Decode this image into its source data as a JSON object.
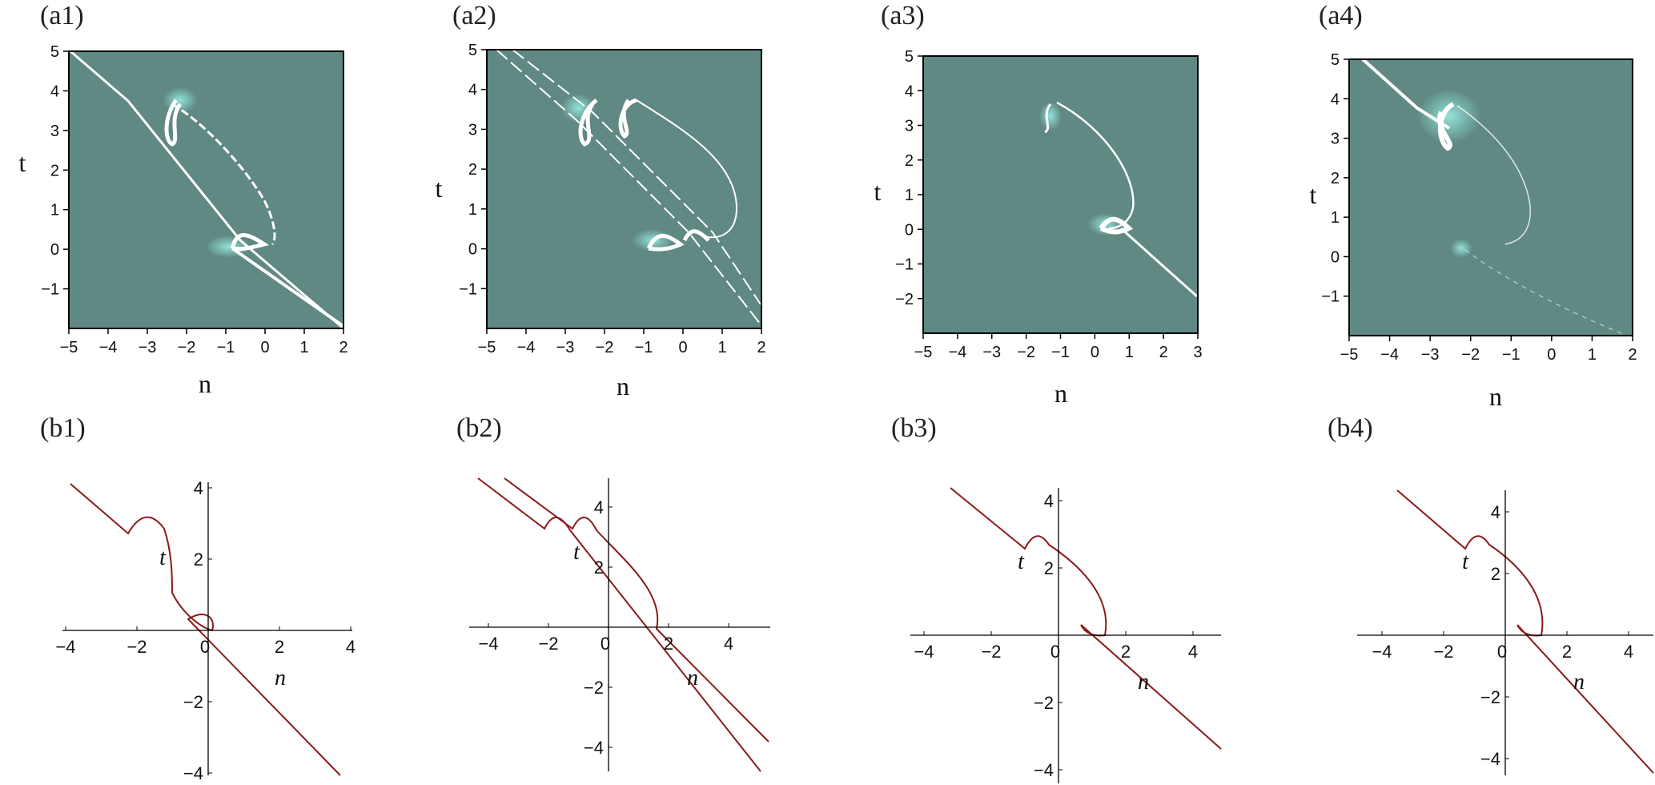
{
  "colors": {
    "density_bg": "#5f8982",
    "density_ridge": "#ffffff",
    "density_glow": "#7fe6dc",
    "curve": "#8b1a1a",
    "axis": "#000000"
  },
  "figure": {
    "density_panels": [
      {
        "label": "(a1)",
        "xlabel": "n",
        "ylabel": "t",
        "xlim": [
          -5,
          2
        ],
        "ylim": [
          -2,
          5
        ],
        "xticks": [
          "-5",
          "-4",
          "-3",
          "-2",
          "-1",
          "0",
          "1",
          "2"
        ],
        "yticks": [
          "-1",
          "0",
          "1",
          "2",
          "3",
          "4",
          "5"
        ]
      },
      {
        "label": "(a2)",
        "xlabel": "n",
        "ylabel": "t",
        "xlim": [
          -5,
          2
        ],
        "ylim": [
          -2,
          5
        ],
        "xticks": [
          "-5",
          "-4",
          "-3",
          "-2",
          "-1",
          "0",
          "1",
          "2"
        ],
        "yticks": [
          "-1",
          "0",
          "1",
          "2",
          "3",
          "4",
          "5"
        ]
      },
      {
        "label": "(a3)",
        "xlabel": "n",
        "ylabel": "t",
        "xlim": [
          -5,
          3
        ],
        "ylim": [
          -3,
          5
        ],
        "xticks": [
          "-5",
          "-4",
          "-3",
          "-2",
          "-1",
          "0",
          "1",
          "2",
          "3"
        ],
        "yticks": [
          "-2",
          "-1",
          "0",
          "1",
          "2",
          "3",
          "4",
          "5"
        ]
      },
      {
        "label": "(a4)",
        "xlabel": "n",
        "ylabel": "t",
        "xlim": [
          -5,
          2
        ],
        "ylim": [
          -2,
          5
        ],
        "xticks": [
          "-5",
          "-4",
          "-3",
          "-2",
          "-1",
          "0",
          "1",
          "2"
        ],
        "yticks": [
          "-1",
          "0",
          "1",
          "2",
          "3",
          "4",
          "5"
        ]
      }
    ],
    "curve_panels": [
      {
        "label": "(b1)",
        "xlabel": "n",
        "ylabel": "t",
        "xticks": [
          "-4",
          "-2",
          "0",
          "2",
          "4"
        ],
        "yticks": [
          "-4",
          "-2",
          "2",
          "4"
        ]
      },
      {
        "label": "(b2)",
        "xlabel": "n",
        "ylabel": "t",
        "xticks": [
          "-4",
          "-2",
          "0",
          "2",
          "4"
        ],
        "yticks": [
          "-4",
          "-2",
          "2",
          "4"
        ]
      },
      {
        "label": "(b3)",
        "xlabel": "n",
        "ylabel": "t",
        "xticks": [
          "-4",
          "-2",
          "0",
          "2",
          "4"
        ],
        "yticks": [
          "-4",
          "-2",
          "2",
          "4"
        ]
      },
      {
        "label": "(b4)",
        "xlabel": "n",
        "ylabel": "t",
        "xticks": [
          "-4",
          "-2",
          "0",
          "2",
          "4"
        ],
        "yticks": [
          "-4",
          "-2",
          "2",
          "4"
        ]
      }
    ]
  }
}
